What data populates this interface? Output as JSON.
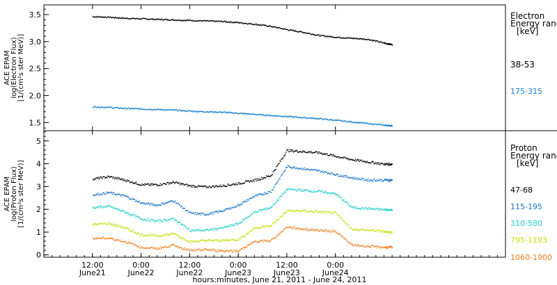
{
  "chart_data": [
    {
      "type": "scatter",
      "ylabel_lines": [
        "ACE EPAM",
        "log(Electron Flux)",
        "[1/(cm²s ster MeV)]"
      ],
      "y_ticks": [
        "1.5",
        "2.0",
        "2.5",
        "3.0",
        "3.5"
      ],
      "ylim": [
        1.35,
        3.68
      ],
      "legend_title_lines": [
        "Electron",
        "Energy range",
        "[keV]"
      ],
      "x": [
        0,
        4,
        8,
        12,
        16,
        20,
        24,
        28,
        32,
        36,
        40,
        44,
        48,
        52,
        56,
        60,
        64,
        68,
        72,
        74
      ],
      "series": [
        {
          "name": "38-53",
          "color": "#000000",
          "values": [
            3.47,
            3.46,
            3.44,
            3.43,
            3.42,
            3.41,
            3.4,
            3.39,
            3.38,
            3.36,
            3.33,
            3.29,
            3.23,
            3.18,
            3.12,
            3.09,
            3.07,
            3.05,
            2.98,
            2.95
          ]
        },
        {
          "name": "175-315",
          "color": "#1a80d0",
          "values": [
            1.8,
            1.79,
            1.77,
            1.76,
            1.75,
            1.74,
            1.72,
            1.71,
            1.7,
            1.68,
            1.66,
            1.64,
            1.62,
            1.6,
            1.58,
            1.55,
            1.52,
            1.49,
            1.46,
            1.45
          ]
        }
      ]
    },
    {
      "type": "scatter",
      "ylabel_lines": [
        "ACE EPAM",
        "log(Proton Flux)",
        "[1/(cm²s ster MeV)]"
      ],
      "y_ticks": [
        "0",
        "1",
        "2",
        "3",
        "4",
        "5"
      ],
      "ylim": [
        -0.1,
        5.45
      ],
      "legend_title_lines": [
        "Proton",
        "Energy range",
        "[keV]"
      ],
      "x": [
        0,
        4,
        8,
        12,
        16,
        20,
        24,
        28,
        32,
        36,
        40,
        44,
        48,
        52,
        56,
        60,
        64,
        68,
        72,
        74
      ],
      "series": [
        {
          "name": "47-68",
          "color": "#000000",
          "values": [
            3.35,
            3.45,
            3.3,
            3.1,
            3.1,
            3.2,
            3.05,
            3.0,
            3.05,
            3.15,
            3.3,
            3.5,
            4.6,
            4.55,
            4.5,
            4.35,
            4.2,
            4.1,
            4.0,
            4.0
          ]
        },
        {
          "name": "115-195",
          "color": "#1a73c8",
          "values": [
            2.65,
            2.75,
            2.6,
            2.3,
            2.2,
            2.4,
            1.85,
            1.8,
            1.95,
            2.2,
            2.6,
            2.8,
            3.9,
            3.8,
            3.7,
            3.55,
            3.4,
            3.3,
            3.3,
            3.3
          ]
        },
        {
          "name": "310-580",
          "color": "#20d0c8",
          "values": [
            2.1,
            2.15,
            1.9,
            1.6,
            1.5,
            1.6,
            1.1,
            1.1,
            1.2,
            1.4,
            1.9,
            2.1,
            2.9,
            2.85,
            2.8,
            2.7,
            2.1,
            2.05,
            2.0,
            2.0
          ]
        },
        {
          "name": "795-1193",
          "color": "#c8e010",
          "values": [
            1.35,
            1.4,
            1.2,
            0.9,
            0.85,
            0.95,
            0.6,
            0.65,
            0.65,
            0.7,
            1.2,
            1.3,
            1.95,
            1.95,
            1.9,
            1.85,
            1.15,
            1.1,
            1.05,
            1.0
          ]
        },
        {
          "name": "1060-1900",
          "color": "#f08020",
          "values": [
            0.75,
            0.75,
            0.6,
            0.35,
            0.3,
            0.45,
            0.2,
            0.25,
            0.2,
            0.2,
            0.6,
            0.65,
            1.25,
            1.15,
            1.1,
            1.05,
            0.45,
            0.4,
            0.35,
            0.35
          ]
        }
      ]
    }
  ],
  "x_axis": {
    "range_hours": [
      -12,
      102
    ],
    "ticks": [
      {
        "hour": 0,
        "label": "12:00",
        "sub": "June21"
      },
      {
        "hour": 12,
        "label": "0:00",
        "sub": "June22"
      },
      {
        "hour": 24,
        "label": "12:00",
        "sub": "June22"
      },
      {
        "hour": 36,
        "label": "0:00",
        "sub": "June23"
      },
      {
        "hour": 48,
        "label": "12:00",
        "sub": "June23"
      },
      {
        "hour": 60,
        "label": "0:00",
        "sub": "June24"
      }
    ],
    "title": "hours:minutes, June 21, 2011 - June 24, 2011"
  }
}
